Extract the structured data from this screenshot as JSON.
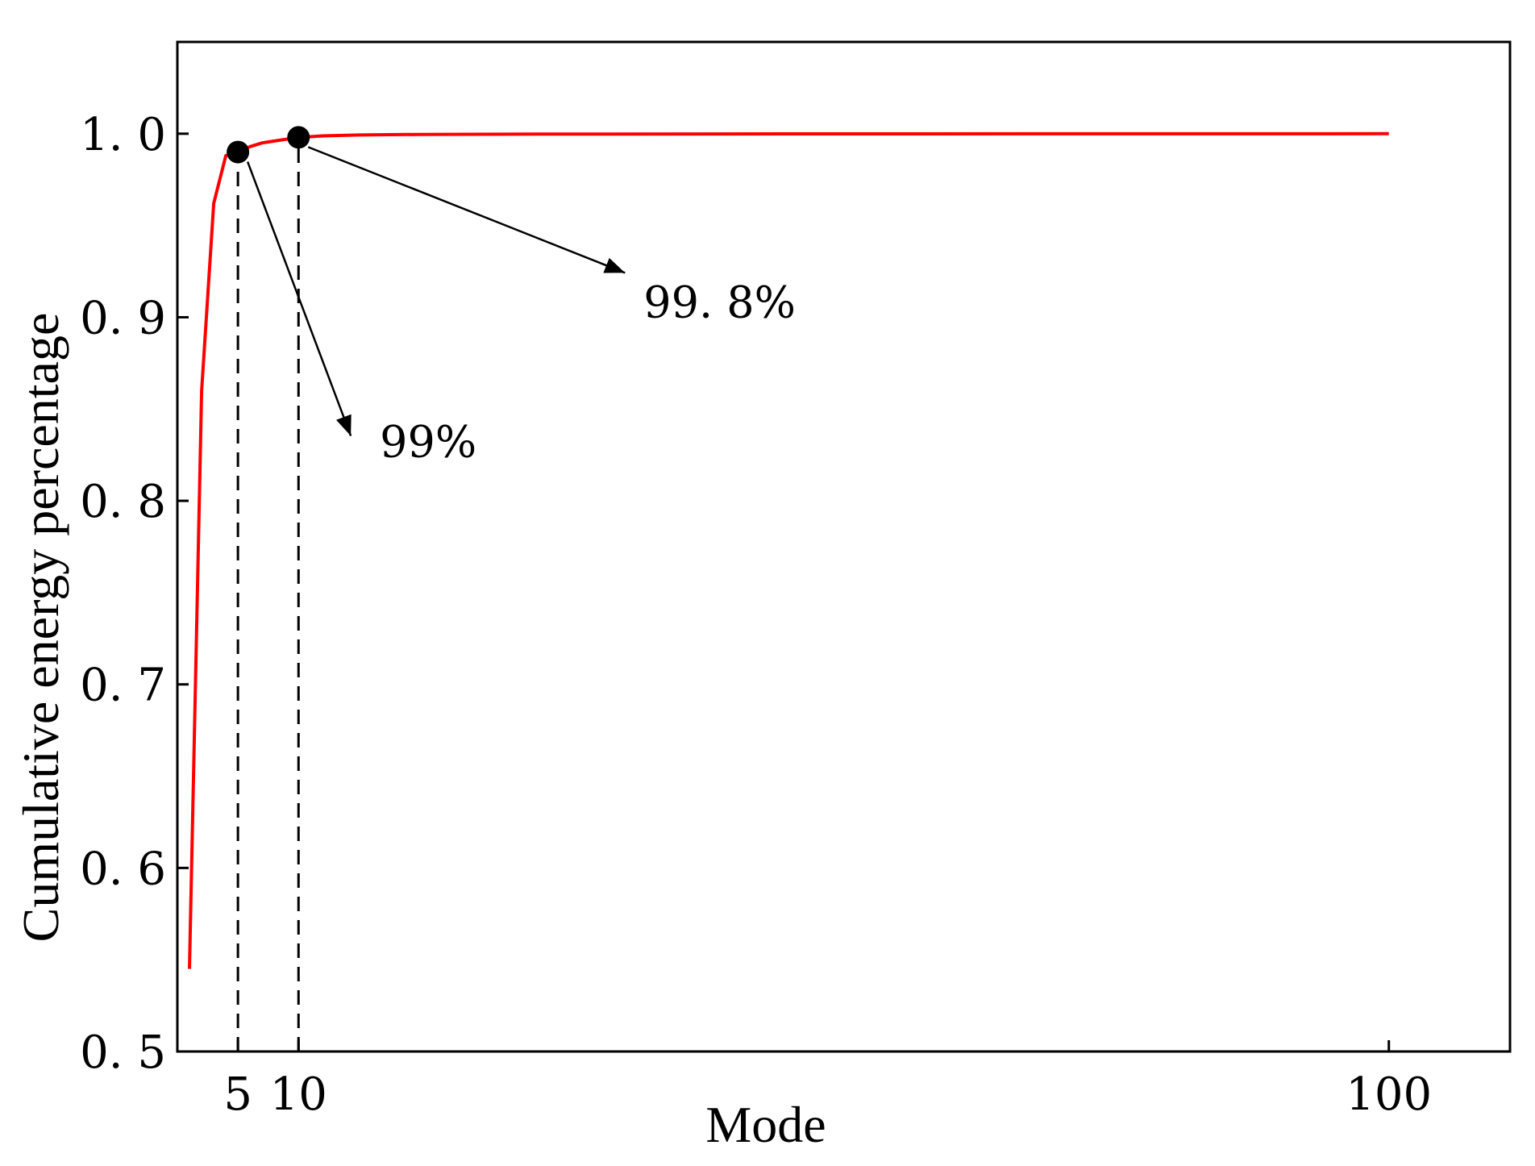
{
  "chart_data": {
    "type": "line",
    "xlabel": "Mode",
    "ylabel": "Cumulative energy percentage",
    "xlim": [
      0,
      110
    ],
    "ylim": [
      0.5,
      1.05
    ],
    "x_ticks": [
      5,
      10,
      100
    ],
    "x_tick_labels": [
      "5",
      "10",
      "100"
    ],
    "y_ticks": [
      0.5,
      0.6,
      0.7,
      0.8,
      0.9,
      1.0
    ],
    "y_tick_labels": [
      "0. 5",
      "0. 6",
      "0. 7",
      "0. 8",
      "0. 9",
      "1. 0"
    ],
    "grid": false,
    "series": [
      {
        "color": "#ff0000",
        "x": [
          1,
          2,
          3,
          4,
          5,
          6,
          7,
          8,
          9,
          10,
          12,
          15,
          20,
          30,
          50,
          100
        ],
        "y": [
          0.545,
          0.86,
          0.962,
          0.988,
          0.99,
          0.993,
          0.995,
          0.996,
          0.997,
          0.998,
          0.9988,
          0.9993,
          0.9996,
          0.9998,
          0.9999,
          1.0
        ]
      }
    ],
    "markers": [
      {
        "x": 5,
        "y": 0.99,
        "label": "99%"
      },
      {
        "x": 10,
        "y": 0.998,
        "label": "99. 8%"
      }
    ]
  }
}
